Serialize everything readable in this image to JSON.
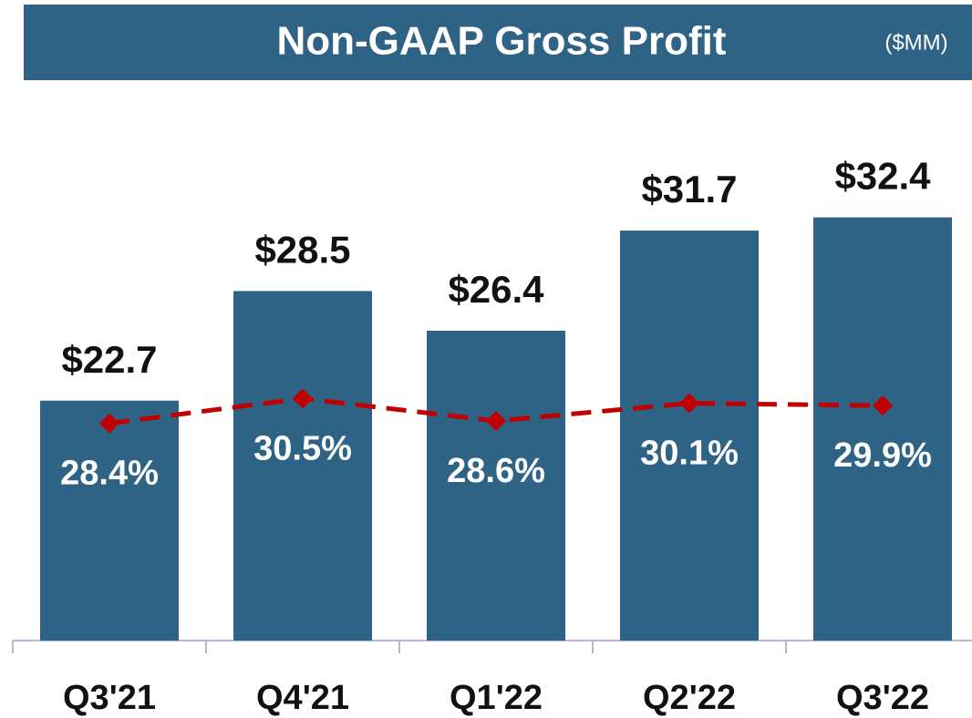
{
  "chart_data": {
    "type": "bar",
    "title": "Non-GAAP Gross Profit",
    "subtitle": "($MM)",
    "categories": [
      "Q3'21",
      "Q4'21",
      "Q1'22",
      "Q2'22",
      "Q3'22"
    ],
    "series": [
      {
        "type": "bar",
        "color": "#2e6386",
        "values": [
          22.7,
          28.5,
          26.4,
          31.7,
          32.4
        ],
        "value_labels": [
          "$22.7",
          "$28.5",
          "$26.4",
          "$31.7",
          "$32.4"
        ]
      },
      {
        "type": "line",
        "axis": "y2",
        "color": "#c00000",
        "values": [
          28.4,
          30.5,
          28.6,
          30.1,
          29.9
        ],
        "value_labels": [
          "28.4%",
          "30.5%",
          "28.6%",
          "30.1%",
          "29.9%"
        ]
      }
    ],
    "ylim": [
      10,
      40
    ],
    "y2lim": [
      10,
      58
    ]
  }
}
